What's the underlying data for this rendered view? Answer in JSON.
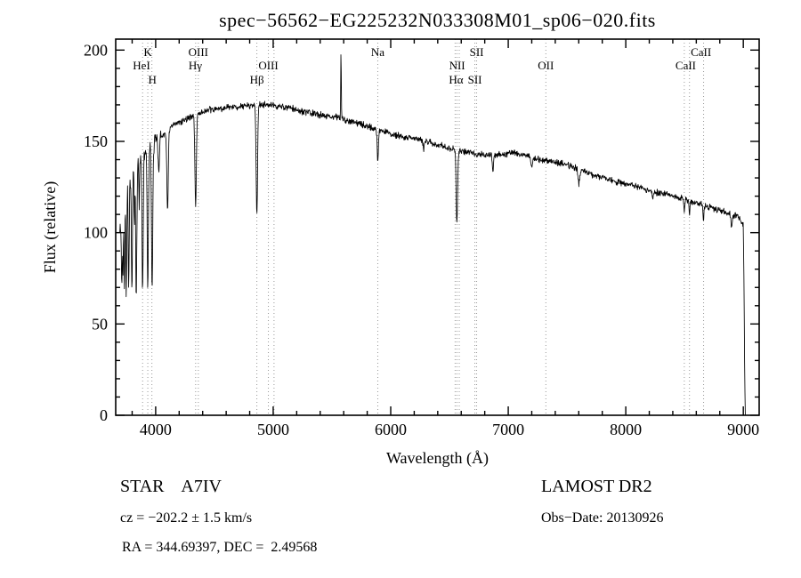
{
  "title": "spec−56562−EG225232N033308M01_sp06−020.fits",
  "footer": {
    "class_label": "STAR    A7IV",
    "survey": "LAMOST DR2",
    "cz": "cz = −202.2 ± 1.5 km/s",
    "obs_date": "Obs−Date: 20130926",
    "coords": "RA = 344.69397, DEC =  2.49568"
  },
  "chart_data": {
    "type": "line",
    "title": "spec−56562−EG225232N033308M01_sp06−020.fits",
    "xlabel": "Wavelength (Å)",
    "ylabel": "Flux (relative)",
    "xlim": [
      3660,
      9135
    ],
    "ylim": [
      0,
      206
    ],
    "x_ticks": [
      4000,
      5000,
      6000,
      7000,
      8000,
      9000
    ],
    "y_ticks": [
      0,
      50,
      100,
      150,
      200
    ],
    "x_minor_step": 200,
    "y_minor_step": 10,
    "grid": false,
    "line_color": "#000000",
    "marker_line_color": "#999999",
    "domain": [
      3695,
      9022
    ],
    "sample_step": 3,
    "noise": {
      "base": 2.2,
      "blue": 5.5,
      "blue_limit": 4050,
      "seed": 42
    },
    "continuum": [
      [
        3695,
        100
      ],
      [
        3720,
        116
      ],
      [
        3760,
        126
      ],
      [
        3800,
        133
      ],
      [
        3840,
        138
      ],
      [
        3880,
        142
      ],
      [
        3920,
        145
      ],
      [
        3960,
        147
      ],
      [
        4000,
        150
      ],
      [
        4050,
        153
      ],
      [
        4100,
        156
      ],
      [
        4160,
        159
      ],
      [
        4250,
        162
      ],
      [
        4350,
        165
      ],
      [
        4450,
        167
      ],
      [
        4560,
        168
      ],
      [
        4700,
        169
      ],
      [
        4850,
        170
      ],
      [
        4960,
        170
      ],
      [
        5060,
        169
      ],
      [
        5160,
        168
      ],
      [
        5260,
        166
      ],
      [
        5360,
        165
      ],
      [
        5460,
        164
      ],
      [
        5560,
        163
      ],
      [
        5660,
        161
      ],
      [
        5760,
        159
      ],
      [
        5860,
        157
      ],
      [
        5960,
        155
      ],
      [
        6060,
        153
      ],
      [
        6160,
        152
      ],
      [
        6260,
        151
      ],
      [
        6360,
        149
      ],
      [
        6460,
        147
      ],
      [
        6560,
        145
      ],
      [
        6660,
        144
      ],
      [
        6760,
        143
      ],
      [
        6860,
        142
      ],
      [
        6960,
        143
      ],
      [
        7060,
        144
      ],
      [
        7160,
        142
      ],
      [
        7260,
        140
      ],
      [
        7360,
        139
      ],
      [
        7460,
        138
      ],
      [
        7560,
        136
      ],
      [
        7660,
        133
      ],
      [
        7760,
        131
      ],
      [
        7860,
        129
      ],
      [
        7960,
        127
      ],
      [
        8060,
        126
      ],
      [
        8160,
        124
      ],
      [
        8260,
        122
      ],
      [
        8360,
        121
      ],
      [
        8460,
        119
      ],
      [
        8560,
        117
      ],
      [
        8660,
        115
      ],
      [
        8760,
        113
      ],
      [
        8860,
        111
      ],
      [
        8950,
        109
      ],
      [
        9000,
        104
      ],
      [
        9006,
        72
      ],
      [
        9012,
        20
      ],
      [
        9017,
        0
      ],
      [
        9022,
        0
      ]
    ],
    "absorption_features": [
      [
        3712,
        40,
        4
      ],
      [
        3722,
        35,
        3
      ],
      [
        3734,
        50,
        3.5
      ],
      [
        3750,
        55,
        4
      ],
      [
        3771,
        58,
        4
      ],
      [
        3798,
        65,
        4.5
      ],
      [
        3820,
        30,
        3
      ],
      [
        3835,
        72,
        5
      ],
      [
        3860,
        25,
        3
      ],
      [
        3889,
        74,
        5
      ],
      [
        3933,
        75,
        5
      ],
      [
        3970,
        78,
        5.5
      ],
      [
        4026,
        22,
        4
      ],
      [
        4101,
        44,
        6
      ],
      [
        4340,
        50,
        6
      ],
      [
        4861,
        60,
        6
      ],
      [
        5890,
        17,
        5
      ],
      [
        6280,
        7,
        4
      ],
      [
        6563,
        40,
        6
      ],
      [
        6870,
        9,
        5
      ],
      [
        7200,
        5,
        6
      ],
      [
        7600,
        8,
        7
      ],
      [
        8230,
        4,
        5
      ],
      [
        8498,
        6,
        4
      ],
      [
        8542,
        7,
        4
      ],
      [
        8662,
        8,
        4
      ],
      [
        8900,
        8,
        5
      ]
    ],
    "emission_features": [
      [
        5577,
        36,
        2.5
      ]
    ],
    "spectral_lines": [
      3889,
      3933,
      3968,
      4340,
      4363,
      4861,
      4959,
      5007,
      5890,
      6548,
      6563,
      6583,
      6716,
      6731,
      7320,
      8498,
      8542,
      8662
    ],
    "line_labels": [
      {
        "text": "K",
        "wl": 3933,
        "row": 1
      },
      {
        "text": "HeI",
        "wl": 3880,
        "row": 2
      },
      {
        "text": "H",
        "wl": 3972,
        "row": 3
      },
      {
        "text": "OIII",
        "wl": 4363,
        "row": 1
      },
      {
        "text": "Hγ",
        "wl": 4337,
        "row": 2
      },
      {
        "text": "OIII",
        "wl": 4959,
        "row": 2
      },
      {
        "text": "Hβ",
        "wl": 4861,
        "row": 3
      },
      {
        "text": "Na",
        "wl": 5890,
        "row": 1
      },
      {
        "text": "SII",
        "wl": 6731,
        "row": 1
      },
      {
        "text": "NII",
        "wl": 6565,
        "row": 2
      },
      {
        "text": "Hα",
        "wl": 6556,
        "row": 3
      },
      {
        "text": "SII",
        "wl": 6716,
        "row": 3
      },
      {
        "text": "OII",
        "wl": 7320,
        "row": 2
      },
      {
        "text": "CaII",
        "wl": 8640,
        "row": 1
      },
      {
        "text": "CaII",
        "wl": 8510,
        "row": 2
      }
    ]
  }
}
